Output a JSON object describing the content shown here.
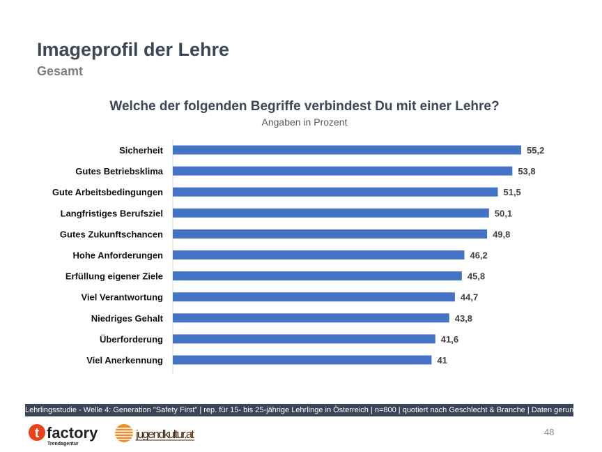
{
  "header": {
    "title": "Imageprofil der Lehre",
    "subtitle": "Gesamt"
  },
  "chart_data": {
    "type": "bar",
    "orientation": "horizontal",
    "title": "Welche der folgenden Begriffe verbindest Du mit einer Lehre?",
    "subtitle": "Angaben in Prozent",
    "categories": [
      "Sicherheit",
      "Gutes Betriebsklima",
      "Gute Arbeitsbedingungen",
      "Langfristiges Berufsziel",
      "Gutes Zukunftschancen",
      "Hohe Anforderungen",
      "Erfüllung eigener Ziele",
      "Viel Verantwortung",
      "Niedriges Gehalt",
      "Überforderung",
      "Viel Anerkennung"
    ],
    "values": [
      55.2,
      53.8,
      51.5,
      50.1,
      49.8,
      46.2,
      45.8,
      44.7,
      43.8,
      41.6,
      41
    ],
    "value_labels": [
      "55,2",
      "53,8",
      "51,5",
      "50,1",
      "49,8",
      "46,2",
      "45,8",
      "44,7",
      "43,8",
      "41,6",
      "41"
    ],
    "xlim": [
      0,
      55.2
    ],
    "grid": false,
    "bar_color": "#4472c4"
  },
  "footer": {
    "note": "Lehrlingsstudie - Welle 4: Generation \"Safety First\" | rep. für 15- bis 25-jährige Lehrlinge in Österreich | n=800 | quotiert nach Geschlecht & Branche | Daten gerundet",
    "page_number": "48"
  },
  "logos": {
    "tfactory": "factory",
    "tfactory_letter": "t",
    "tfactory_sub": "Trendagentur",
    "jugendkultur": "jugendkultur.at"
  }
}
